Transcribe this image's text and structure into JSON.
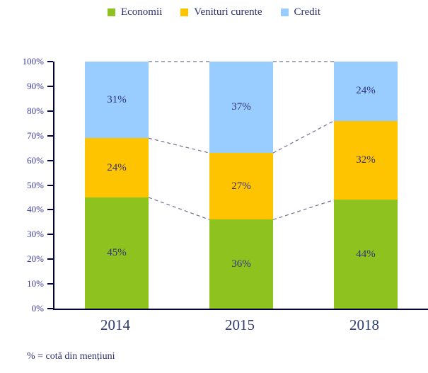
{
  "legend": {
    "position": "top",
    "items": [
      {
        "label": "Economii",
        "color": "#8dc21f",
        "swatch_icon": "green-square-icon"
      },
      {
        "label": "Venituri curente",
        "color": "#ffc400",
        "swatch_icon": "yellow-square-icon"
      },
      {
        "label": "Credit",
        "color": "#99ccff",
        "swatch_icon": "blue-square-icon"
      }
    ]
  },
  "chart_data": {
    "type": "bar",
    "stacked": true,
    "orientation": "vertical",
    "categories": [
      "2014",
      "2015",
      "2018"
    ],
    "series": [
      {
        "name": "Economii",
        "color": "#8dc21f",
        "values": [
          45,
          36,
          44
        ],
        "labels": [
          "45%",
          "36%",
          "44%"
        ]
      },
      {
        "name": "Venituri curente",
        "color": "#ffc400",
        "values": [
          24,
          27,
          32
        ],
        "labels": [
          "24%",
          "27%",
          "32%"
        ]
      },
      {
        "name": "Credit",
        "color": "#99ccff",
        "values": [
          31,
          37,
          24
        ],
        "labels": [
          "31%",
          "37%",
          "24%"
        ]
      }
    ],
    "title": "",
    "xlabel": "",
    "ylabel": "",
    "ylim": [
      0,
      100
    ],
    "yticks": [
      "0%",
      "10%",
      "20%",
      "30%",
      "40%",
      "50%",
      "60%",
      "70%",
      "80%",
      "90%",
      "100%"
    ],
    "grid": false,
    "legend_position": "top",
    "series_connector_lines": "dashed",
    "value_labels": "inside-center"
  },
  "footnote": "% = cotă din mențiuni",
  "colors": {
    "axis": "#000040",
    "tick_label": "#3c3c9c",
    "bar_label": "#333380",
    "category_label": "#2f3c6e",
    "legend_text": "#2b2f6b",
    "connector_dash": "#70708f",
    "background": "#ffffff"
  }
}
